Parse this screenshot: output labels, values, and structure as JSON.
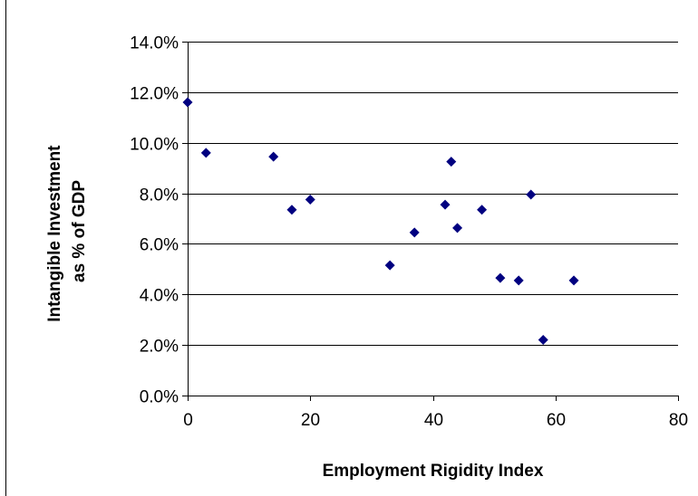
{
  "chart_data": {
    "type": "scatter",
    "xlabel": "Employment Rigidity Index",
    "ylabel_lines": [
      "Intangible Investment",
      "as % of GDP"
    ],
    "xlim": [
      0,
      80
    ],
    "ylim": [
      0,
      0.14
    ],
    "x_ticks": [
      0,
      20,
      40,
      60,
      80
    ],
    "x_tick_labels": [
      "0",
      "20",
      "40",
      "60",
      "80"
    ],
    "y_ticks": [
      0,
      0.02,
      0.04,
      0.06,
      0.08,
      0.1,
      0.12,
      0.14
    ],
    "y_tick_labels": [
      "0.0%",
      "2.0%",
      "4.0%",
      "6.0%",
      "8.0%",
      "10.0%",
      "12.0%",
      "14.0%"
    ],
    "grid": "horizontal",
    "marker": "diamond",
    "colors": {
      "marker": "#000080",
      "grid": "#000000",
      "axis": "#000000"
    },
    "points": [
      {
        "x": 0,
        "y": 0.116
      },
      {
        "x": 3,
        "y": 0.096
      },
      {
        "x": 14,
        "y": 0.0945
      },
      {
        "x": 17,
        "y": 0.0735
      },
      {
        "x": 20,
        "y": 0.0775
      },
      {
        "x": 33,
        "y": 0.0515
      },
      {
        "x": 37,
        "y": 0.0645
      },
      {
        "x": 42,
        "y": 0.0755
      },
      {
        "x": 43,
        "y": 0.0925
      },
      {
        "x": 44,
        "y": 0.0663
      },
      {
        "x": 48,
        "y": 0.0735
      },
      {
        "x": 51,
        "y": 0.0465
      },
      {
        "x": 54,
        "y": 0.0455
      },
      {
        "x": 56,
        "y": 0.0795
      },
      {
        "x": 58,
        "y": 0.022
      },
      {
        "x": 63,
        "y": 0.0455
      }
    ]
  }
}
